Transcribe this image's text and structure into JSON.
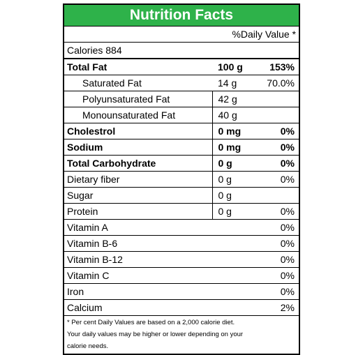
{
  "title": "Nutrition Facts",
  "daily_value_header": "%Daily Value *",
  "calories": "Calories 884",
  "rows": [
    {
      "name": "Total Fat",
      "amount": "100 g",
      "dv": "153%"
    },
    {
      "name": "Saturated Fat",
      "amount": "14 g",
      "dv": "70.0%"
    },
    {
      "name": "Polyunsaturated Fat",
      "amount": "42 g",
      "dv": ""
    },
    {
      "name": "Monounsaturated Fat",
      "amount": "40 g",
      "dv": ""
    },
    {
      "name": "Cholestrol",
      "amount": "0 mg",
      "dv": "0%"
    },
    {
      "name": "Sodium",
      "amount": "0 mg",
      "dv": "0%"
    },
    {
      "name": "Total Carbohydrate",
      "amount": "0 g",
      "dv": "0%"
    },
    {
      "name": "Dietary fiber",
      "amount": "0 g",
      "dv": "0%"
    },
    {
      "name": "Sugar",
      "amount": "0 g",
      "dv": ""
    },
    {
      "name": "Protein",
      "amount": "0 g",
      "dv": "0%"
    },
    {
      "name": "Vitamin A",
      "amount": "",
      "dv": "0%"
    },
    {
      "name": "Vitamin B-6",
      "amount": "",
      "dv": "0%"
    },
    {
      "name": "Vitamin B-12",
      "amount": "",
      "dv": "0%"
    },
    {
      "name": "Vitamin C",
      "amount": "",
      "dv": "0%"
    },
    {
      "name": "Iron",
      "amount": "",
      "dv": "0%"
    },
    {
      "name": "Calcium",
      "amount": "",
      "dv": "2%"
    }
  ],
  "footnote": [
    "* Per cent Daily Values are based on a 2,000 calorie diet.",
    "Your daily values may be higher or lower depending on your",
    "calorie needs."
  ],
  "colors": {
    "header_bg": "#2eb24a",
    "header_text": "#ffffff"
  }
}
